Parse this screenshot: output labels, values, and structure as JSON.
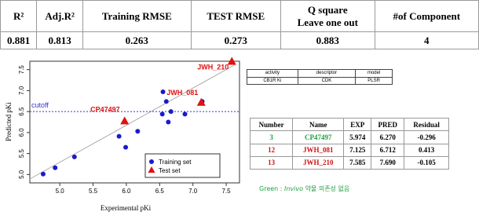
{
  "metrics_table": {
    "headers": [
      [
        "R²"
      ],
      [
        "Adj.R²"
      ],
      [
        "Training RMSE"
      ],
      [
        "TEST RMSE"
      ],
      [
        "Q square",
        "Leave one out"
      ],
      [
        "#of Component"
      ]
    ],
    "rows": [
      [
        "0.881",
        "0.813",
        "0.263",
        "0.273",
        "0.883",
        "4"
      ]
    ]
  },
  "chart_data": {
    "type": "scatter",
    "x_label": "Experimental pKi",
    "y_label": "Predicted pKi",
    "xlim": [
      4.55,
      7.7
    ],
    "ylim": [
      4.8,
      7.7
    ],
    "xticks": [
      {
        "value": 5,
        "label": "5.0"
      },
      {
        "value": 5.5,
        "label": "5.5"
      },
      {
        "value": 6,
        "label": "6.0"
      },
      {
        "value": 6.5,
        "label": "6.5"
      },
      {
        "value": 7,
        "label": "7.0"
      },
      {
        "value": 7.5,
        "label": "7.5"
      }
    ],
    "yticks": [
      {
        "value": 5,
        "label": "5.0"
      },
      {
        "value": 5.5,
        "label": "5.5"
      },
      {
        "value": 6,
        "label": "6.0"
      },
      {
        "value": 6.5,
        "label": "6.5"
      },
      {
        "value": 7,
        "label": "7.0"
      },
      {
        "value": 7.5,
        "label": "7.5"
      }
    ],
    "cutoff": {
      "label": "cutoff",
      "value": 6.5,
      "color": "#3333cc"
    },
    "legend": "bottom-right",
    "series": [
      {
        "name": "Training set",
        "color": "#1a1acc",
        "marker": "circle",
        "x": [
          4.75,
          4.93,
          5.22,
          5.89,
          5.99,
          6.17,
          6.54,
          6.6,
          6.63,
          6.67,
          6.55,
          6.88,
          7.14
        ],
        "values": [
          5.01,
          5.16,
          5.42,
          5.91,
          5.65,
          6.03,
          6.44,
          6.74,
          6.25,
          6.5,
          6.97,
          6.44,
          6.74
        ]
      },
      {
        "name": "Test set",
        "color": "#e01010",
        "marker": "triangle",
        "x": [
          5.974,
          7.125,
          7.585
        ],
        "values": [
          6.27,
          6.712,
          7.69
        ],
        "labels": [
          "CP47497",
          "JWH_081",
          "JWH_210"
        ]
      }
    ]
  },
  "model_table": {
    "headers": [
      "activity",
      "descriptor",
      "model"
    ],
    "rows": [
      [
        "CB1R Ki",
        "CDK",
        "PLSR"
      ]
    ]
  },
  "results_table": {
    "headers": [
      "Number",
      "Name",
      "EXP",
      "PRED",
      "Residual"
    ],
    "rows": [
      [
        "3",
        "CP47497",
        "5.974",
        "6.270",
        "-0.296"
      ],
      [
        "12",
        "JWH_081",
        "7.125",
        "6.712",
        "0.413"
      ],
      [
        "13",
        "JWH_210",
        "7.585",
        "7.690",
        "-0.105"
      ]
    ],
    "row_colors": [
      "#20a040",
      "#d01010",
      "#d01010"
    ]
  },
  "note": {
    "prefix": "Green : ",
    "italic": "Invivo",
    "rest": " 약물 의존성 없음"
  }
}
